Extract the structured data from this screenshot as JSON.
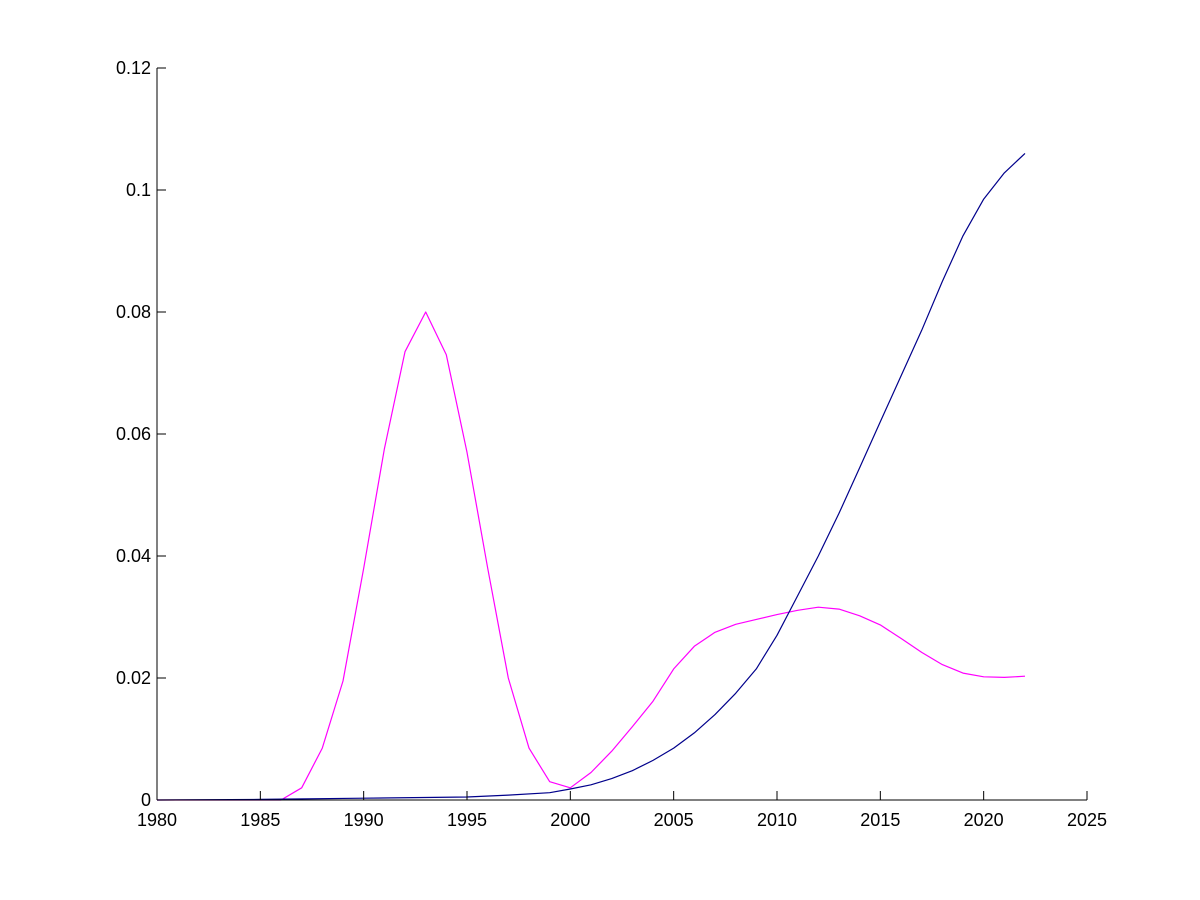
{
  "chart_data": {
    "type": "line",
    "title": "",
    "xlabel": "",
    "ylabel": "",
    "xlim": [
      1980,
      2025
    ],
    "ylim": [
      0,
      0.12
    ],
    "grid": false,
    "legend": "none",
    "x_ticks": [
      "1980",
      "1985",
      "1990",
      "1995",
      "2000",
      "2005",
      "2010",
      "2015",
      "2020",
      "2025"
    ],
    "y_ticks": [
      "0",
      "0.02",
      "0.04",
      "0.06",
      "0.08",
      "0.1",
      "0.12"
    ],
    "x_tick_values": [
      1980,
      1985,
      1990,
      1995,
      2000,
      2005,
      2010,
      2015,
      2020,
      2025
    ],
    "y_tick_values": [
      0,
      0.02,
      0.04,
      0.06,
      0.08,
      0.1,
      0.12
    ],
    "series": [
      {
        "color": "#ff00ff",
        "x": [
          1980,
          1985,
          1986,
          1987,
          1988,
          1989,
          1990,
          1991,
          1992,
          1993,
          1994,
          1995,
          1996,
          1997,
          1998,
          1999,
          2000,
          2001,
          2002,
          2003,
          2004,
          2005,
          2006,
          2007,
          2008,
          2009,
          2010,
          2011,
          2012,
          2013,
          2014,
          2015,
          2016,
          2017,
          2018,
          2019,
          2020,
          2021,
          2022
        ],
        "values": [
          0,
          0,
          0,
          0.002,
          0.0085,
          0.0195,
          0.038,
          0.0575,
          0.0735,
          0.08,
          0.073,
          0.057,
          0.038,
          0.02,
          0.0085,
          0.003,
          0.002,
          0.0045,
          0.008,
          0.012,
          0.0162,
          0.0215,
          0.0252,
          0.0275,
          0.0288,
          0.0296,
          0.0304,
          0.0311,
          0.0316,
          0.0313,
          0.0302,
          0.0287,
          0.0265,
          0.0242,
          0.0222,
          0.0208,
          0.0202,
          0.0201,
          0.0203
        ]
      },
      {
        "color": "#00008b",
        "x": [
          1980,
          1985,
          1990,
          1995,
          1997,
          1999,
          2000,
          2001,
          2002,
          2003,
          2004,
          2005,
          2006,
          2007,
          2008,
          2009,
          2010,
          2011,
          2012,
          2013,
          2014,
          2015,
          2016,
          2017,
          2018,
          2019,
          2020,
          2021,
          2022
        ],
        "values": [
          0,
          0.0001,
          0.0003,
          0.0005,
          0.0008,
          0.0012,
          0.0018,
          0.0025,
          0.0035,
          0.0048,
          0.0065,
          0.0085,
          0.011,
          0.014,
          0.0175,
          0.0215,
          0.027,
          0.0335,
          0.04,
          0.047,
          0.0545,
          0.062,
          0.0695,
          0.077,
          0.085,
          0.0925,
          0.0985,
          0.1028,
          0.106
        ]
      }
    ]
  }
}
